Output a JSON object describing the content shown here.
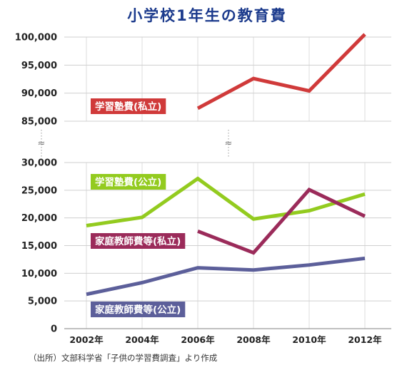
{
  "chart_data": {
    "type": "line",
    "title": "小学校1年生の教育費",
    "x": [
      "2002年",
      "2004年",
      "2006年",
      "2008年",
      "2010年",
      "2012年"
    ],
    "y_ticks_lower": [
      "0",
      "5,000",
      "10,000",
      "15,000",
      "20,000",
      "25,000",
      "30,000"
    ],
    "y_ticks_upper": [
      "85,000",
      "90,000",
      "95,000",
      "100,000"
    ],
    "y_break_symbol": "≈",
    "ylim_lower": [
      0,
      30000
    ],
    "ylim_upper": [
      85000,
      100000
    ],
    "grid": true,
    "series": [
      {
        "name": "学習塾費(私立)",
        "color": "#d03a3a",
        "segment": "upper",
        "values": [
          null,
          null,
          87300,
          92600,
          90400,
          100500
        ]
      },
      {
        "name": "学習塾費(公立)",
        "color": "#93cb1f",
        "segment": "lower",
        "values": [
          18600,
          20100,
          27100,
          19800,
          21300,
          24300
        ]
      },
      {
        "name": "家庭教師費等(私立)",
        "color": "#9b2b5a",
        "segment": "lower",
        "values": [
          null,
          null,
          17600,
          13700,
          25100,
          20300
        ]
      },
      {
        "name": "家庭教師費等(公立)",
        "color": "#5c5f9a",
        "segment": "lower",
        "values": [
          6200,
          8300,
          11000,
          10600,
          11500,
          12700
        ]
      }
    ],
    "source": "（出所）文部科学省「子供の学習費調査」より作成"
  }
}
